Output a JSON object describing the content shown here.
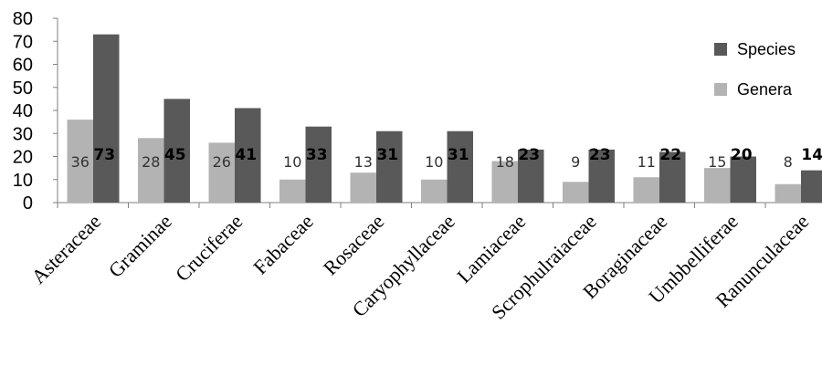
{
  "chart_data": {
    "type": "bar",
    "categories": [
      "Asteraceae",
      "Graminae",
      "Cruciferae",
      "Fabaceae",
      "Rosaceae",
      "Caryophyllaceae",
      "Lamiaceae",
      "Scrophulraiaceae",
      "Boraginaceae",
      "Umbbelliferae",
      "Ranunculaceae"
    ],
    "series": [
      {
        "name": "Genera",
        "values": [
          36,
          28,
          26,
          10,
          13,
          10,
          18,
          9,
          11,
          15,
          8
        ],
        "color": "#b3b3b3"
      },
      {
        "name": "Species",
        "values": [
          73,
          45,
          41,
          33,
          31,
          31,
          23,
          23,
          22,
          20,
          14
        ],
        "color": "#595959"
      }
    ],
    "data_labels": {
      "Genera": [
        "36",
        "28",
        "26",
        "10",
        "13",
        "10",
        "18",
        "9",
        "11",
        "15",
        "8"
      ],
      "Species": [
        "73",
        "45",
        "41",
        "33",
        "31",
        "31",
        "23",
        "23",
        "22",
        "20",
        "14"
      ]
    },
    "ylim": [
      0,
      80
    ],
    "yticks": [
      0,
      10,
      20,
      30,
      40,
      50,
      60,
      70,
      80
    ],
    "legend_position": "right",
    "grid": false,
    "title": "",
    "xlabel": "",
    "ylabel": ""
  }
}
